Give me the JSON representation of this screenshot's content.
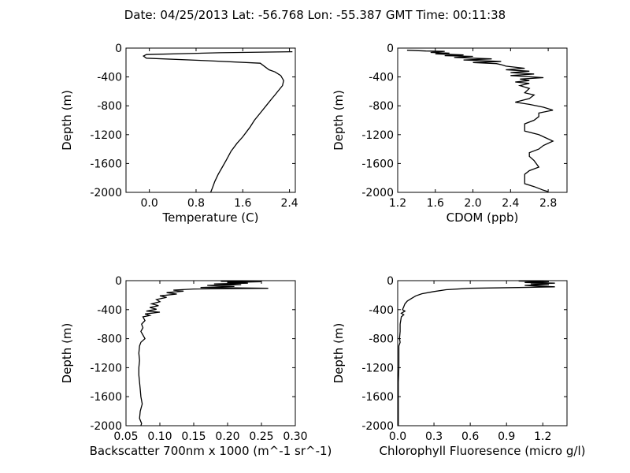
{
  "figure": {
    "suptitle": "Date: 04/25/2013  Lat:  -56.768 Lon:  -55.387  GMT Time: 00:11:38"
  },
  "chart_data": [
    {
      "type": "line",
      "id": "temperature",
      "xlabel": "Temperature (C)",
      "ylabel": "Depth (m)",
      "xlim": [
        -0.4,
        2.5
      ],
      "ylim": [
        -2000,
        0
      ],
      "xticks": [
        "0.0",
        "0.8",
        "1.6",
        "2.4"
      ],
      "xtick_values": [
        0.0,
        0.8,
        1.6,
        2.4
      ],
      "yticks": [
        "0",
        "-400",
        "-800",
        "-1200",
        "-1600",
        "-2000"
      ],
      "ytick_values": [
        0,
        -400,
        -800,
        -1200,
        -1600,
        -2000
      ],
      "series": [
        {
          "points": [
            [
              2.45,
              -50
            ],
            [
              1.2,
              -65
            ],
            [
              -0.05,
              -90
            ],
            [
              -0.1,
              -110
            ],
            [
              -0.05,
              -140
            ],
            [
              1.0,
              -175
            ],
            [
              1.9,
              -210
            ],
            [
              2.05,
              -300
            ],
            [
              2.15,
              -330
            ],
            [
              2.25,
              -380
            ],
            [
              2.3,
              -450
            ],
            [
              2.28,
              -520
            ],
            [
              2.2,
              -600
            ],
            [
              2.15,
              -650
            ],
            [
              2.1,
              -700
            ],
            [
              2.0,
              -800
            ],
            [
              1.9,
              -900
            ],
            [
              1.8,
              -1000
            ],
            [
              1.72,
              -1100
            ],
            [
              1.6,
              -1230
            ],
            [
              1.5,
              -1320
            ],
            [
              1.4,
              -1430
            ],
            [
              1.32,
              -1550
            ],
            [
              1.25,
              -1650
            ],
            [
              1.18,
              -1750
            ],
            [
              1.12,
              -1850
            ],
            [
              1.08,
              -1940
            ],
            [
              1.05,
              -2000
            ]
          ]
        }
      ]
    },
    {
      "type": "line",
      "id": "cdom",
      "xlabel": "CDOM (ppb)",
      "ylabel": "Depth (m)",
      "xlim": [
        1.2,
        3.0
      ],
      "ylim": [
        -2000,
        0
      ],
      "xticks": [
        "1.2",
        "1.6",
        "2.0",
        "2.4",
        "2.8"
      ],
      "xtick_values": [
        1.2,
        1.6,
        2.0,
        2.4,
        2.8
      ],
      "yticks": [
        "0",
        "-400",
        "-800",
        "-1200",
        "-1600",
        "-2000"
      ],
      "ytick_values": [
        0,
        -400,
        -800,
        -1200,
        -1600,
        -2000
      ],
      "series": [
        {
          "points": [
            [
              1.3,
              -30
            ],
            [
              1.5,
              -40
            ],
            [
              1.7,
              -45
            ],
            [
              1.55,
              -60
            ],
            [
              1.75,
              -70
            ],
            [
              1.6,
              -80
            ],
            [
              1.9,
              -95
            ],
            [
              1.7,
              -105
            ],
            [
              2.0,
              -115
            ],
            [
              1.8,
              -130
            ],
            [
              2.2,
              -150
            ],
            [
              1.9,
              -165
            ],
            [
              2.3,
              -185
            ],
            [
              2.0,
              -200
            ],
            [
              2.25,
              -215
            ],
            [
              2.3,
              -230
            ],
            [
              2.35,
              -250
            ],
            [
              2.55,
              -280
            ],
            [
              2.35,
              -300
            ],
            [
              2.6,
              -320
            ],
            [
              2.4,
              -340
            ],
            [
              2.65,
              -360
            ],
            [
              2.4,
              -380
            ],
            [
              2.75,
              -410
            ],
            [
              2.5,
              -430
            ],
            [
              2.6,
              -450
            ],
            [
              2.45,
              -470
            ],
            [
              2.6,
              -490
            ],
            [
              2.5,
              -520
            ],
            [
              2.6,
              -560
            ],
            [
              2.55,
              -620
            ],
            [
              2.65,
              -650
            ],
            [
              2.6,
              -700
            ],
            [
              2.45,
              -750
            ],
            [
              2.6,
              -780
            ],
            [
              2.75,
              -820
            ],
            [
              2.85,
              -860
            ],
            [
              2.7,
              -900
            ],
            [
              2.7,
              -950
            ],
            [
              2.65,
              -1000
            ],
            [
              2.55,
              -1050
            ],
            [
              2.55,
              -1150
            ],
            [
              2.7,
              -1200
            ],
            [
              2.85,
              -1290
            ],
            [
              2.75,
              -1350
            ],
            [
              2.7,
              -1400
            ],
            [
              2.6,
              -1450
            ],
            [
              2.6,
              -1500
            ],
            [
              2.65,
              -1560
            ],
            [
              2.7,
              -1650
            ],
            [
              2.6,
              -1700
            ],
            [
              2.55,
              -1750
            ],
            [
              2.55,
              -1800
            ],
            [
              2.55,
              -1880
            ],
            [
              2.65,
              -1920
            ],
            [
              2.75,
              -1970
            ],
            [
              2.8,
              -1990
            ]
          ]
        }
      ]
    },
    {
      "type": "line",
      "id": "backscatter",
      "xlabel": "Backscatter 700nm x 1000 (m^-1 sr^-1)",
      "ylabel": "Depth (m)",
      "xlim": [
        0.05,
        0.3
      ],
      "ylim": [
        -2000,
        0
      ],
      "xticks": [
        "0.05",
        "0.10",
        "0.15",
        "0.20",
        "0.25",
        "0.30"
      ],
      "xtick_values": [
        0.05,
        0.1,
        0.15,
        0.2,
        0.25,
        0.3
      ],
      "yticks": [
        "0",
        "-400",
        "-800",
        "-1200",
        "-1600",
        "-2000"
      ],
      "ytick_values": [
        0,
        -400,
        -800,
        -1200,
        -1600,
        -2000
      ],
      "series": [
        {
          "points": [
            [
              0.19,
              -10
            ],
            [
              0.25,
              -15
            ],
            [
              0.2,
              -25
            ],
            [
              0.23,
              -35
            ],
            [
              0.18,
              -45
            ],
            [
              0.22,
              -55
            ],
            [
              0.17,
              -65
            ],
            [
              0.21,
              -80
            ],
            [
              0.16,
              -95
            ],
            [
              0.26,
              -105
            ],
            [
              0.15,
              -115
            ],
            [
              0.12,
              -130
            ],
            [
              0.135,
              -145
            ],
            [
              0.11,
              -165
            ],
            [
              0.125,
              -185
            ],
            [
              0.1,
              -210
            ],
            [
              0.11,
              -230
            ],
            [
              0.095,
              -260
            ],
            [
              0.1,
              -290
            ],
            [
              0.088,
              -320
            ],
            [
              0.098,
              -345
            ],
            [
              0.085,
              -370
            ],
            [
              0.095,
              -395
            ],
            [
              0.08,
              -420
            ],
            [
              0.1,
              -435
            ],
            [
              0.078,
              -460
            ],
            [
              0.085,
              -480
            ],
            [
              0.075,
              -500
            ],
            [
              0.078,
              -550
            ],
            [
              0.073,
              -600
            ],
            [
              0.075,
              -650
            ],
            [
              0.072,
              -700
            ],
            [
              0.075,
              -750
            ],
            [
              0.078,
              -800
            ],
            [
              0.072,
              -850
            ],
            [
              0.07,
              -900
            ],
            [
              0.069,
              -1000
            ],
            [
              0.07,
              -1100
            ],
            [
              0.069,
              -1200
            ],
            [
              0.069,
              -1300
            ],
            [
              0.07,
              -1400
            ],
            [
              0.071,
              -1500
            ],
            [
              0.072,
              -1600
            ],
            [
              0.074,
              -1700
            ],
            [
              0.071,
              -1800
            ],
            [
              0.07,
              -1900
            ],
            [
              0.073,
              -1970
            ],
            [
              0.072,
              -2000
            ]
          ]
        }
      ]
    },
    {
      "type": "line",
      "id": "chlorophyll",
      "xlabel": "Chlorophyll Fluoresence (micro g/l)",
      "ylabel": "Depth (m)",
      "xlim": [
        0.0,
        1.4
      ],
      "ylim": [
        -2000,
        0
      ],
      "xticks": [
        "0.0",
        "0.3",
        "0.6",
        "0.9",
        "1.2"
      ],
      "xtick_values": [
        0.0,
        0.3,
        0.6,
        0.9,
        1.2
      ],
      "yticks": [
        "0",
        "-400",
        "-800",
        "-1200",
        "-1600",
        "-2000"
      ],
      "ytick_values": [
        0,
        -400,
        -800,
        -1200,
        -1600,
        -2000
      ],
      "series": [
        {
          "points": [
            [
              1.0,
              -5
            ],
            [
              1.25,
              -15
            ],
            [
              1.05,
              -25
            ],
            [
              1.3,
              -35
            ],
            [
              1.1,
              -45
            ],
            [
              1.25,
              -55
            ],
            [
              1.05,
              -65
            ],
            [
              1.15,
              -75
            ],
            [
              1.3,
              -85
            ],
            [
              1.0,
              -95
            ],
            [
              0.6,
              -105
            ],
            [
              0.4,
              -125
            ],
            [
              0.3,
              -150
            ],
            [
              0.2,
              -180
            ],
            [
              0.15,
              -210
            ],
            [
              0.12,
              -240
            ],
            [
              0.08,
              -280
            ],
            [
              0.06,
              -320
            ],
            [
              0.05,
              -360
            ],
            [
              0.04,
              -400
            ],
            [
              0.06,
              -420
            ],
            [
              0.03,
              -450
            ],
            [
              0.05,
              -470
            ],
            [
              0.03,
              -500
            ],
            [
              0.02,
              -600
            ],
            [
              0.02,
              -700
            ],
            [
              0.015,
              -800
            ],
            [
              0.02,
              -850
            ],
            [
              0.01,
              -900
            ],
            [
              0.01,
              -1000
            ],
            [
              0.01,
              -1200
            ],
            [
              0.005,
              -1400
            ],
            [
              0.005,
              -1600
            ],
            [
              0.005,
              -1800
            ],
            [
              0.005,
              -2000
            ]
          ]
        }
      ]
    }
  ]
}
